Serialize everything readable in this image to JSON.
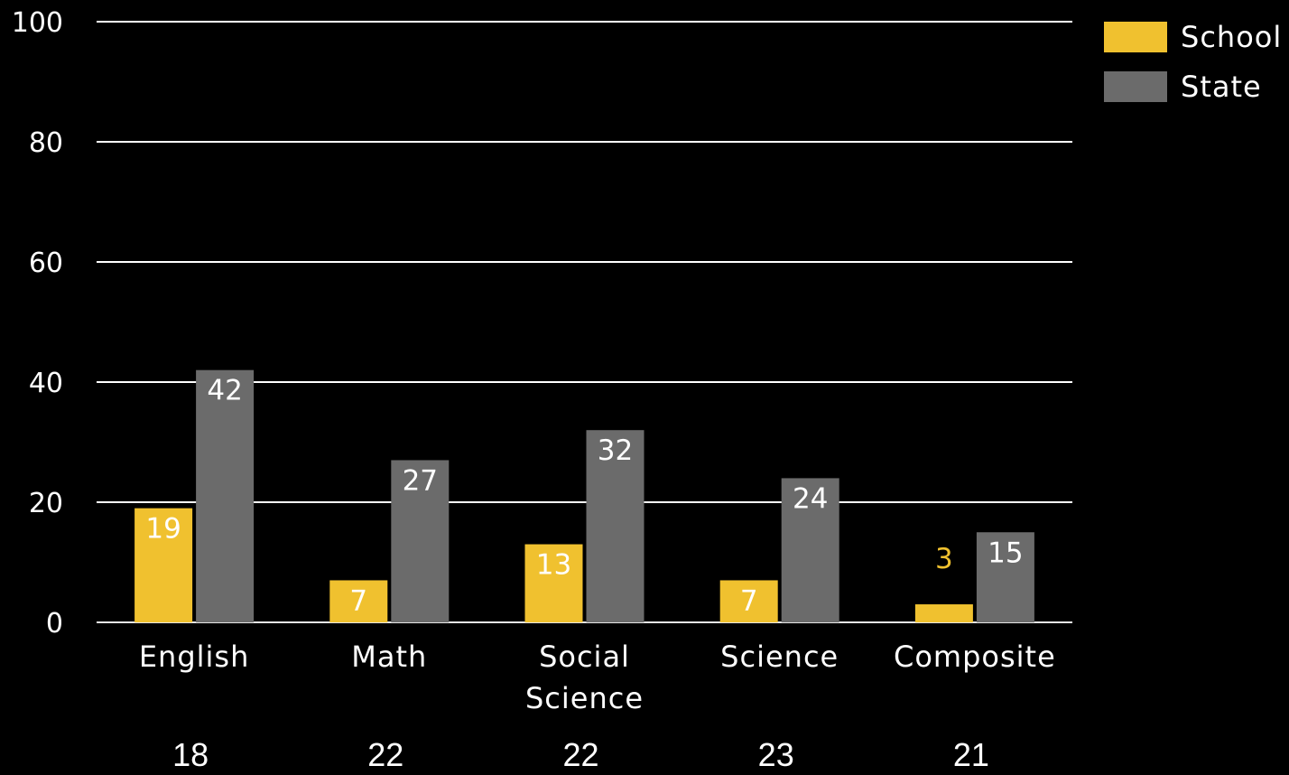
{
  "chart_data": {
    "type": "bar",
    "title": "",
    "xlabel": "",
    "ylabel": "",
    "ylim": [
      0,
      100
    ],
    "yticks": [
      0,
      20,
      40,
      60,
      80,
      100
    ],
    "grid": true,
    "legend_position": "top-right",
    "categories": [
      [
        "English"
      ],
      [
        "Math"
      ],
      [
        "Social",
        "Science"
      ],
      [
        "Science"
      ],
      [
        "Composite"
      ]
    ],
    "series": [
      {
        "name": "School",
        "color": "#f0c12f",
        "values": [
          19,
          7,
          13,
          7,
          3
        ]
      },
      {
        "name": "State",
        "color": "#6b6b6b",
        "values": [
          42,
          27,
          32,
          24,
          15
        ]
      }
    ],
    "bottom_values": [
      "18",
      "22",
      "22",
      "23",
      "21"
    ]
  },
  "colors": {
    "background": "#000000",
    "gridline": "#ffffff",
    "text": "#ffffff",
    "outside_label": "#f0c12f"
  }
}
